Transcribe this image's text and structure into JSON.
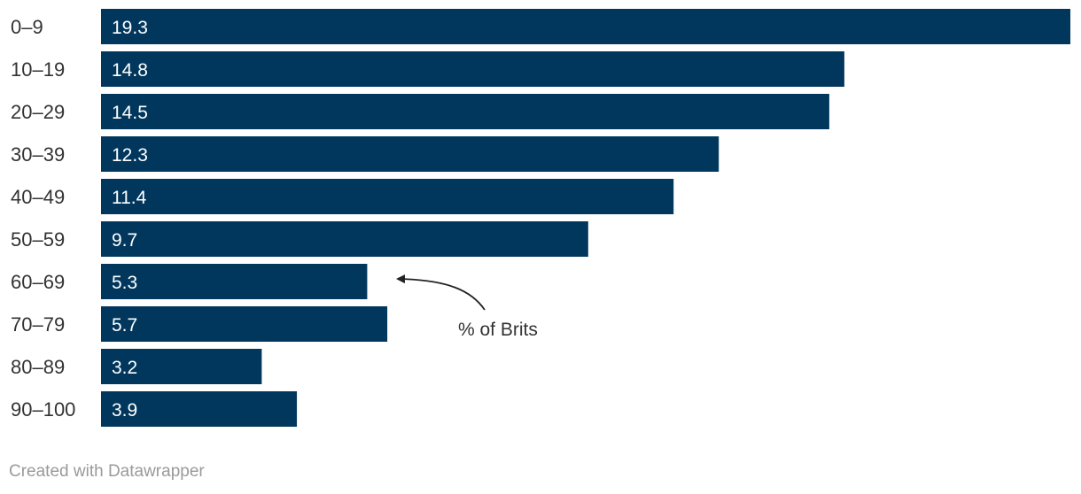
{
  "chart_data": {
    "type": "bar",
    "orientation": "horizontal",
    "categories": [
      "0–9",
      "10–19",
      "20–29",
      "30–39",
      "40–49",
      "50–59",
      "60–69",
      "70–79",
      "80–89",
      "90–100"
    ],
    "values": [
      19.3,
      14.8,
      14.5,
      12.3,
      11.4,
      9.7,
      5.3,
      5.7,
      3.2,
      3.9
    ],
    "xlim": [
      0,
      19.3
    ],
    "grid": false,
    "value_labels": "inside-left",
    "annotation": "% of Brits",
    "bar_color": "#01375d"
  },
  "footer": {
    "credit": "Created with Datawrapper"
  },
  "colors": {
    "bar": "#01375d",
    "value_text": "#ffffff",
    "label_text": "#333333",
    "footer_text": "#9a9a9a"
  }
}
